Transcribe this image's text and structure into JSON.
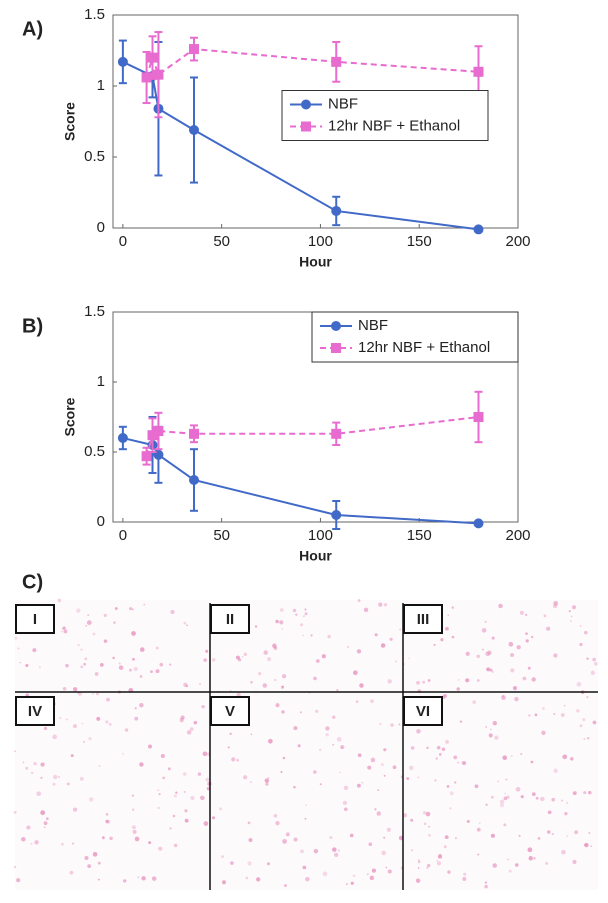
{
  "chart_data": [
    {
      "type": "line",
      "label": "A)",
      "xlabel": "Hour",
      "ylabel": "Score",
      "xlim": [
        -5,
        200
      ],
      "xticks": [
        0,
        50,
        100,
        150,
        200
      ],
      "ylim": [
        0,
        1.5
      ],
      "yticks": [
        0,
        0.5,
        1,
        1.5
      ],
      "legend": "right",
      "series": [
        {
          "name": "NBF",
          "color": "#4169c8",
          "marker": "circle",
          "linestyle": "solid",
          "x": [
            0,
            15,
            18,
            36,
            108,
            180
          ],
          "values": [
            1.17,
            1.07,
            0.84,
            0.69,
            0.12,
            -0.01
          ],
          "errors": [
            0.15,
            0.15,
            0.47,
            0.37,
            0.1,
            0
          ]
        },
        {
          "name": "12hr NBF + Ethanol",
          "color": "#e86bd0",
          "marker": "square",
          "linestyle": "dashed",
          "x": [
            12,
            15,
            18,
            36,
            108,
            180
          ],
          "values": [
            1.06,
            1.2,
            1.08,
            1.26,
            1.17,
            1.1
          ],
          "errors": [
            0.18,
            0.15,
            0.3,
            0.08,
            0.14,
            0.18
          ]
        }
      ]
    },
    {
      "type": "line",
      "label": "B)",
      "xlabel": "Hour",
      "ylabel": "Score",
      "xlim": [
        -5,
        200
      ],
      "xticks": [
        0,
        50,
        100,
        150,
        200
      ],
      "ylim": [
        0,
        1.5
      ],
      "yticks": [
        0,
        0.5,
        1,
        1.5
      ],
      "legend": "upper right",
      "series": [
        {
          "name": "NBF",
          "color": "#4169c8",
          "marker": "circle",
          "linestyle": "solid",
          "x": [
            0,
            15,
            18,
            36,
            108,
            180
          ],
          "values": [
            0.6,
            0.55,
            0.48,
            0.3,
            0.05,
            -0.01
          ],
          "errors": [
            0.08,
            0.2,
            0.2,
            0.22,
            0.1,
            0
          ]
        },
        {
          "name": "12hr NBF + Ethanol",
          "color": "#e86bd0",
          "marker": "square",
          "linestyle": "dashed",
          "x": [
            12,
            15,
            18,
            36,
            108,
            180
          ],
          "values": [
            0.47,
            0.62,
            0.65,
            0.63,
            0.63,
            0.75
          ],
          "errors": [
            0.06,
            0.12,
            0.13,
            0.06,
            0.08,
            0.18
          ]
        }
      ]
    }
  ],
  "figure_c": {
    "label": "C)",
    "panels": [
      "I",
      "II",
      "III",
      "IV",
      "V",
      "VI"
    ]
  }
}
